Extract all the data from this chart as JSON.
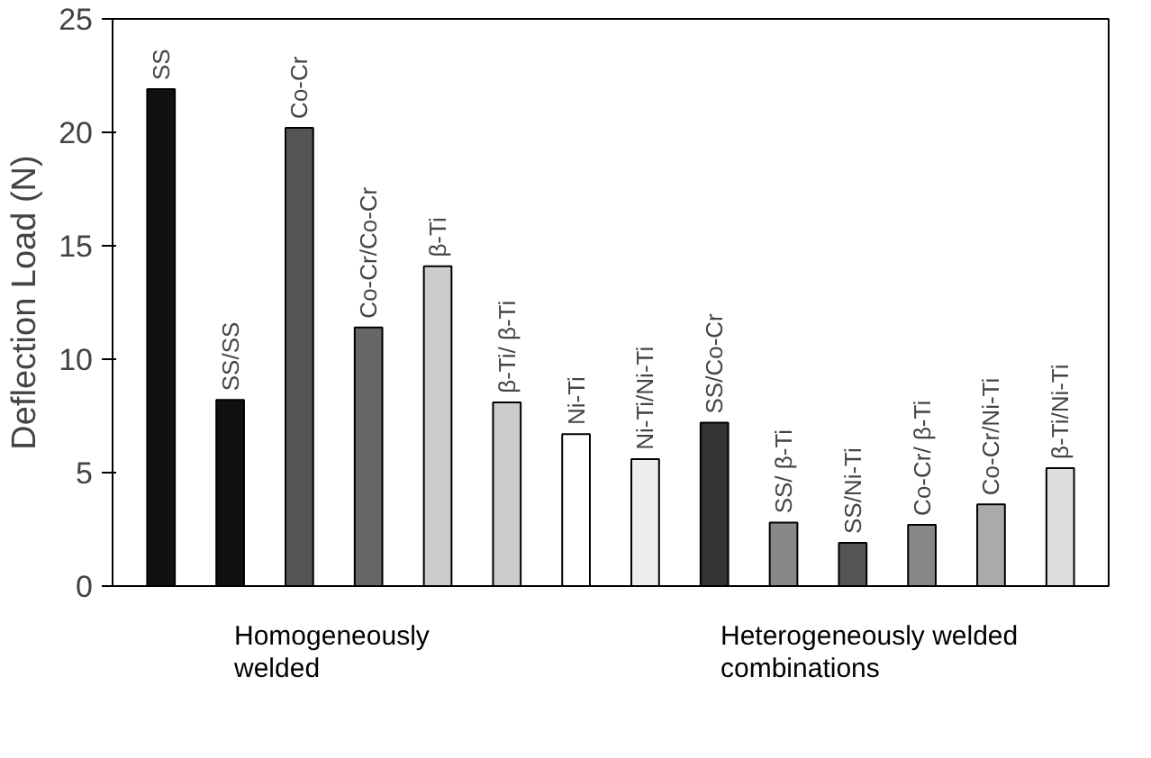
{
  "chart_data": {
    "type": "bar",
    "ylabel": "Deflection Load (N)",
    "categories": [
      "SS",
      "SS/SS",
      "Co-Cr",
      "Co-Cr/Co-Cr",
      "β-Ti",
      "β-Ti/ β-Ti",
      "Ni-Ti",
      "Ni-Ti/Ni-Ti",
      "SS/Co-Cr",
      "SS/ β-Ti",
      "SS/Ni-Ti",
      "Co-Cr/ β-Ti",
      "Co-Cr/Ni-Ti",
      "β-Ti/Ni-Ti"
    ],
    "values": [
      21.9,
      8.2,
      20.2,
      11.4,
      14.1,
      8.1,
      6.7,
      5.6,
      7.2,
      2.8,
      1.9,
      2.7,
      3.6,
      5.2
    ],
    "colors": [
      "#111111",
      "#111111",
      "#555555",
      "#666666",
      "#cccccc",
      "#cccccc",
      "#ffffff",
      "#eeeeee",
      "#333333",
      "#888888",
      "#555555",
      "#888888",
      "#aaaaaa",
      "#dddddd"
    ],
    "ylim": [
      0,
      25
    ],
    "yticks": [
      0,
      5,
      10,
      15,
      20,
      25
    ],
    "grid": false,
    "tick_labels": "y",
    "annotations": [
      "Homogeneously welded",
      "Heterogeneously welded combinations"
    ]
  }
}
